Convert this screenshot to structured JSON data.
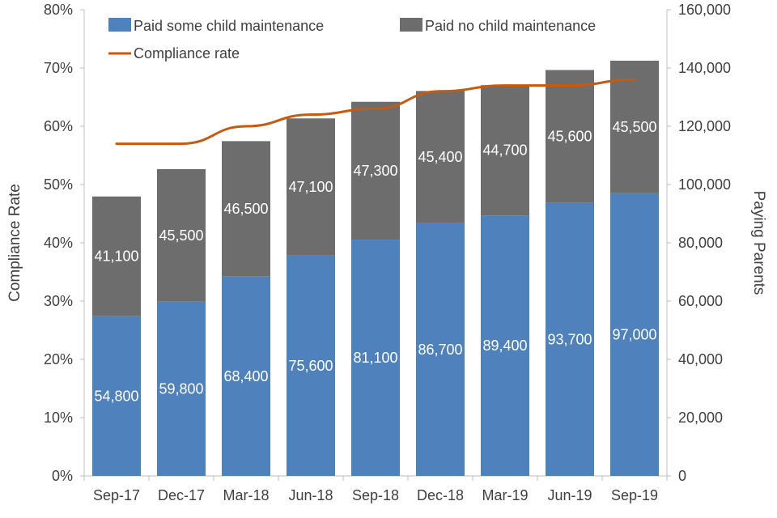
{
  "chart_data": {
    "type": "bar",
    "stacked": true,
    "categories": [
      "Sep-17",
      "Dec-17",
      "Mar-18",
      "Jun-18",
      "Sep-18",
      "Dec-18",
      "Mar-19",
      "Jun-19",
      "Sep-19"
    ],
    "series": [
      {
        "name": "Paid some child maintenance",
        "axis": "right",
        "color": "#4F81BD",
        "values": [
          54800,
          59800,
          68400,
          75600,
          81100,
          86700,
          89400,
          93700,
          97000
        ],
        "labels": [
          "54,800",
          "59,800",
          "68,400",
          "75,600",
          "81,100",
          "86,700",
          "89,400",
          "93,700",
          "97,000"
        ]
      },
      {
        "name": "Paid no child maintenance",
        "axis": "right",
        "color": "#6D6D6D",
        "values": [
          41100,
          45500,
          46500,
          47100,
          47300,
          45400,
          44700,
          45600,
          45500
        ],
        "labels": [
          "41,100",
          "45,500",
          "46,500",
          "47,100",
          "47,300",
          "45,400",
          "44,700",
          "45,600",
          "45,500"
        ]
      },
      {
        "name": "Compliance rate",
        "axis": "left",
        "type": "line",
        "color": "#C55A11",
        "values": [
          57,
          57,
          60,
          62,
          63,
          66,
          67,
          67,
          68
        ]
      }
    ],
    "ylabel_left": "Compliance Rate",
    "ylabel_right": "Paying Parents",
    "ylim_left": [
      0,
      80
    ],
    "ylim_right": [
      0,
      160000
    ],
    "yticks_left": [
      "0%",
      "10%",
      "20%",
      "30%",
      "40%",
      "50%",
      "60%",
      "70%",
      "80%"
    ],
    "yticks_right": [
      "0",
      "20,000",
      "40,000",
      "60,000",
      "80,000",
      "100,000",
      "120,000",
      "140,000",
      "160,000"
    ],
    "legend_position": "top",
    "grid": false
  }
}
